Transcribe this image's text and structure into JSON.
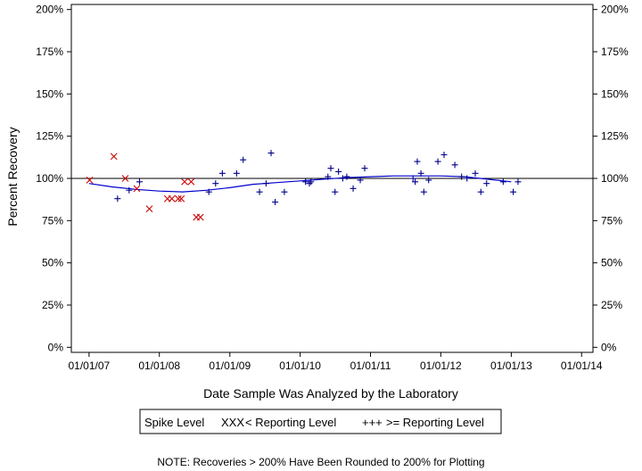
{
  "chart_data": {
    "type": "scatter",
    "xlabel": "Date Sample Was Analyzed by the Laboratory",
    "ylabel": "Percent Recovery",
    "x_ticks": [
      "01/01/07",
      "01/01/08",
      "01/01/09",
      "01/01/10",
      "01/01/11",
      "01/01/12",
      "01/01/13",
      "01/01/14"
    ],
    "y_ticks": [
      "0%",
      "25%",
      "50%",
      "75%",
      "100%",
      "125%",
      "150%",
      "175%",
      "200%"
    ],
    "xlim": [
      "2006-10-01",
      "2014-03-01"
    ],
    "ylim": [
      -3,
      203
    ],
    "reference_line": 100,
    "grid": false,
    "legend_title": "Spike Level",
    "legend_position": "bottom",
    "note": "NOTE: Recoveries > 200% Have Been Rounded to 200% for Plotting",
    "series": [
      {
        "name": "< Reporting Level",
        "marker": "x",
        "color": "#cc0000",
        "legend_glyph": "XXX",
        "points": [
          {
            "x": "2007-01-04",
            "y": 99
          },
          {
            "x": "2007-05-10",
            "y": 113
          },
          {
            "x": "2007-07-08",
            "y": 100
          },
          {
            "x": "2007-09-06",
            "y": 94
          },
          {
            "x": "2007-11-10",
            "y": 82
          },
          {
            "x": "2008-02-12",
            "y": 88
          },
          {
            "x": "2008-03-06",
            "y": 88
          },
          {
            "x": "2008-04-08",
            "y": 88
          },
          {
            "x": "2008-04-24",
            "y": 88
          },
          {
            "x": "2008-05-11",
            "y": 98
          },
          {
            "x": "2008-06-14",
            "y": 98
          },
          {
            "x": "2008-07-11",
            "y": 77
          },
          {
            "x": "2008-08-01",
            "y": 77
          }
        ]
      },
      {
        "name": ">= Reporting Level",
        "marker": "+",
        "color": "#00008b",
        "legend_glyph": "+++",
        "points": [
          {
            "x": "2007-05-29",
            "y": 88
          },
          {
            "x": "2007-07-28",
            "y": 93
          },
          {
            "x": "2007-09-20",
            "y": 98
          },
          {
            "x": "2008-09-14",
            "y": 92
          },
          {
            "x": "2008-10-19",
            "y": 97
          },
          {
            "x": "2008-11-23",
            "y": 103
          },
          {
            "x": "2009-02-05",
            "y": 103
          },
          {
            "x": "2009-03-11",
            "y": 111
          },
          {
            "x": "2009-06-04",
            "y": 92
          },
          {
            "x": "2009-07-08",
            "y": 97
          },
          {
            "x": "2009-08-03",
            "y": 115
          },
          {
            "x": "2009-08-24",
            "y": 86
          },
          {
            "x": "2009-10-11",
            "y": 92
          },
          {
            "x": "2010-01-29",
            "y": 98
          },
          {
            "x": "2010-02-18",
            "y": 97
          },
          {
            "x": "2010-02-26",
            "y": 98
          },
          {
            "x": "2010-05-25",
            "y": 101
          },
          {
            "x": "2010-06-09",
            "y": 106
          },
          {
            "x": "2010-07-01",
            "y": 92
          },
          {
            "x": "2010-07-19",
            "y": 104
          },
          {
            "x": "2010-08-10",
            "y": 100
          },
          {
            "x": "2010-08-31",
            "y": 101
          },
          {
            "x": "2010-10-03",
            "y": 94
          },
          {
            "x": "2010-11-09",
            "y": 99
          },
          {
            "x": "2010-12-02",
            "y": 106
          },
          {
            "x": "2011-08-10",
            "y": 100
          },
          {
            "x": "2011-08-21",
            "y": 98
          },
          {
            "x": "2011-09-01",
            "y": 110
          },
          {
            "x": "2011-09-20",
            "y": 103
          },
          {
            "x": "2011-10-05",
            "y": 92
          },
          {
            "x": "2011-10-30",
            "y": 99
          },
          {
            "x": "2011-12-17",
            "y": 110
          },
          {
            "x": "2012-01-18",
            "y": 114
          },
          {
            "x": "2012-03-14",
            "y": 108
          },
          {
            "x": "2012-04-18",
            "y": 101
          },
          {
            "x": "2012-05-16",
            "y": 100
          },
          {
            "x": "2012-06-28",
            "y": 103
          },
          {
            "x": "2012-07-27",
            "y": 92
          },
          {
            "x": "2012-08-26",
            "y": 97
          },
          {
            "x": "2012-11-20",
            "y": 98
          },
          {
            "x": "2013-01-11",
            "y": 92
          },
          {
            "x": "2013-02-05",
            "y": 98
          }
        ]
      }
    ],
    "trend_line": {
      "color": "#0000cd",
      "points": [
        {
          "x": "2007-01-01",
          "y": 97
        },
        {
          "x": "2007-05-01",
          "y": 95
        },
        {
          "x": "2007-09-01",
          "y": 93.5
        },
        {
          "x": "2008-01-01",
          "y": 92.5
        },
        {
          "x": "2008-05-01",
          "y": 92
        },
        {
          "x": "2008-09-01",
          "y": 93
        },
        {
          "x": "2009-01-01",
          "y": 94.5
        },
        {
          "x": "2009-05-01",
          "y": 96.5
        },
        {
          "x": "2009-09-01",
          "y": 97.5
        },
        {
          "x": "2010-01-01",
          "y": 98.5
        },
        {
          "x": "2010-05-01",
          "y": 99.5
        },
        {
          "x": "2010-09-01",
          "y": 100.5
        },
        {
          "x": "2011-01-01",
          "y": 101
        },
        {
          "x": "2011-05-01",
          "y": 101.5
        },
        {
          "x": "2011-09-01",
          "y": 101.5
        },
        {
          "x": "2012-01-01",
          "y": 101.5
        },
        {
          "x": "2012-05-01",
          "y": 101
        },
        {
          "x": "2012-09-01",
          "y": 99.5
        },
        {
          "x": "2013-01-01",
          "y": 98
        }
      ]
    }
  }
}
